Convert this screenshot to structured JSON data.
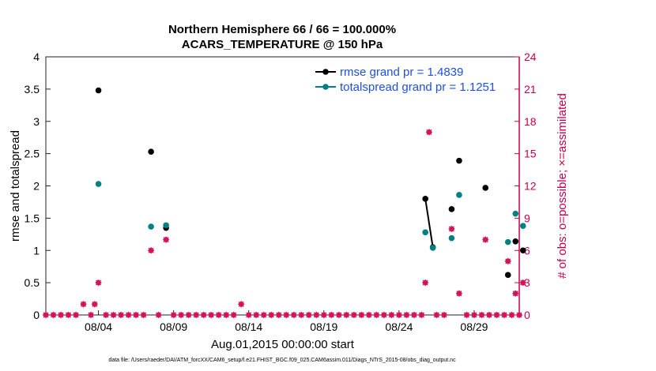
{
  "chart_data": {
    "type": "scatter",
    "title": "Northern Hemisphere 66 / 66 = 100.000%",
    "subtitle": "ACARS_TEMPERATURE @ 150 hPa",
    "xlabel": "Aug.01,2015 00:00:00 start",
    "ylabel": "rmse and totalspread",
    "ylabel_right": "# of obs: o=possible; ×=assimilated",
    "footer": "data file: /Users/raeder/DAI/ATM_forcXX/CAM6_setup/f.e21.FHIST_BGC.f09_025.CAM6assim.011/Diags_NTrS_2015-08/obs_diag_output.nc",
    "x_tick_labels": [
      "08/04",
      "08/09",
      "08/14",
      "08/19",
      "08/24",
      "08/29"
    ],
    "x_tick_values": [
      4,
      9,
      14,
      19,
      24,
      29
    ],
    "xlim": [
      0.5,
      32
    ],
    "ylim": [
      0,
      4
    ],
    "y_ticks": [
      "0",
      "0.5",
      "1",
      "1.5",
      "2",
      "2.5",
      "3",
      "3.5",
      "4"
    ],
    "ylim_right": [
      0,
      24
    ],
    "y_ticks_right": [
      "0",
      "3",
      "6",
      "9",
      "12",
      "15",
      "18",
      "21",
      "24"
    ],
    "colors": {
      "rmse": "#000000",
      "spread": "#008080",
      "obs": "#d4145a",
      "legend_text": "#1f4fe0"
    },
    "series": [
      {
        "name": "rmse grand pr = 1.4839",
        "color": "#000000",
        "points": [
          [
            4,
            3.48
          ],
          [
            7.5,
            2.53
          ],
          [
            8.5,
            1.35
          ],
          [
            25.75,
            1.8
          ],
          [
            26.25,
            1.05
          ],
          [
            27.5,
            1.64
          ],
          [
            28,
            2.39
          ],
          [
            29.75,
            1.97
          ],
          [
            31.25,
            0.62
          ],
          [
            31.75,
            1.14
          ],
          [
            32.25,
            1.0
          ]
        ],
        "segments": [
          [
            [
              25.75,
              1.8
            ],
            [
              26.25,
              1.05
            ]
          ]
        ]
      },
      {
        "name": "totalspread grand pr = 1.1251",
        "color": "#008080",
        "points": [
          [
            4,
            2.03
          ],
          [
            7.5,
            1.37
          ],
          [
            8.5,
            1.39
          ],
          [
            25.75,
            1.28
          ],
          [
            26.25,
            1.04
          ],
          [
            27.5,
            1.19
          ],
          [
            28,
            1.86
          ],
          [
            31.25,
            1.13
          ],
          [
            31.75,
            1.57
          ],
          [
            32.25,
            1.38
          ]
        ],
        "segments": []
      }
    ],
    "obs_possible": {
      "color": "#d4145a",
      "points": [
        [
          3,
          1
        ],
        [
          3.75,
          1
        ],
        [
          4,
          3
        ],
        [
          7.5,
          6
        ],
        [
          8.5,
          7
        ],
        [
          13.5,
          1
        ],
        [
          25.75,
          3
        ],
        [
          26,
          17
        ],
        [
          27.5,
          8
        ],
        [
          28,
          2
        ],
        [
          29.75,
          7
        ],
        [
          31.25,
          5
        ],
        [
          31.75,
          2
        ],
        [
          32.25,
          3
        ]
      ]
    }
  }
}
